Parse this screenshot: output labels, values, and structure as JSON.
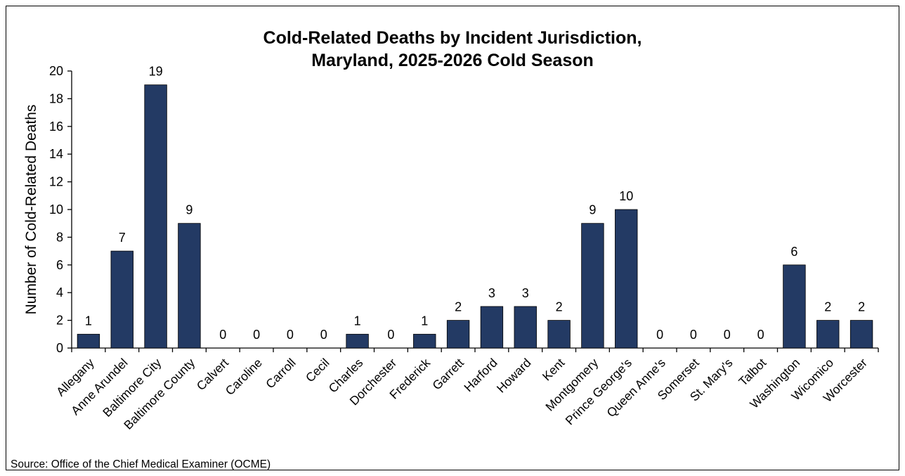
{
  "chart_data": {
    "type": "bar",
    "title_lines": [
      "Cold-Related Deaths by Incident Jurisdiction,",
      "Maryland, 2025-2026 Cold Season"
    ],
    "ylabel": "Number of Cold-Related Deaths",
    "xlabel": "",
    "ylim": [
      0,
      20
    ],
    "yticks": [
      "0",
      "2",
      "4",
      "6",
      "8",
      "10",
      "12",
      "14",
      "16",
      "18",
      "20"
    ],
    "categories": [
      "Allegany",
      "Anne Arundel",
      "Baltimore City",
      "Baltimore County",
      "Calvert",
      "Caroline",
      "Carroll",
      "Cecil",
      "Charles",
      "Dorchester",
      "Frederick",
      "Garrett",
      "Harford",
      "Howard",
      "Kent",
      "Montgomery",
      "Prince George's",
      "Queen Anne's",
      "Somerset",
      "St. Mary's",
      "Talbot",
      "Washington",
      "Wicomico",
      "Worcester"
    ],
    "values": [
      1,
      7,
      19,
      9,
      0,
      0,
      0,
      0,
      1,
      0,
      1,
      2,
      3,
      3,
      2,
      9,
      10,
      0,
      0,
      0,
      0,
      6,
      2,
      2
    ],
    "bar_color": "#233a64",
    "grid": false,
    "legend": "none"
  },
  "source": "Source: Office of the Chief Medical Examiner (OCME)"
}
